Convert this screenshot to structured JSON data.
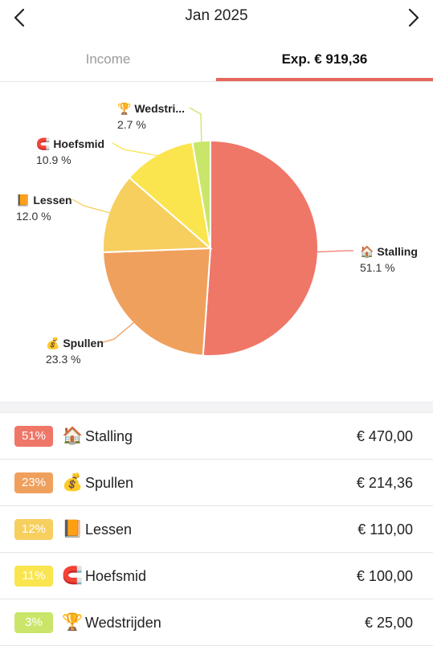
{
  "header": {
    "title": "Jan 2025"
  },
  "tabs": {
    "income_label": "Income",
    "expense_label": "Exp. € 919,36"
  },
  "colors": {
    "accent": "#e5675c"
  },
  "chart_data": {
    "type": "pie",
    "slices": [
      {
        "name": "Stalling",
        "chart_label": "Stalling",
        "icon": "🏠",
        "percent": 51.1,
        "percent_label": "51.1 %",
        "color": "#ef7768"
      },
      {
        "name": "Spullen",
        "chart_label": "Spullen",
        "icon": "💰",
        "percent": 23.3,
        "percent_label": "23.3 %",
        "color": "#f0a05d"
      },
      {
        "name": "Lessen",
        "chart_label": "Lessen",
        "icon": "📙",
        "percent": 12.0,
        "percent_label": "12.0 %",
        "color": "#f6cf5f"
      },
      {
        "name": "Hoefsmid",
        "chart_label": "Hoefsmid",
        "icon": "🧲",
        "percent": 10.9,
        "percent_label": "10.9 %",
        "color": "#fae54f"
      },
      {
        "name": "Wedstrijden",
        "chart_label": "Wedstri...",
        "icon": "🏆",
        "percent": 2.7,
        "percent_label": "2.7 %",
        "color": "#c9e66a"
      }
    ]
  },
  "list": [
    {
      "badge": "51%",
      "icon": "🏠",
      "label": "Stalling",
      "amount": "€ 470,00",
      "color": "#ef7768"
    },
    {
      "badge": "23%",
      "icon": "💰",
      "label": "Spullen",
      "amount": "€ 214,36",
      "color": "#f0a05d"
    },
    {
      "badge": "12%",
      "icon": "📙",
      "label": "Lessen",
      "amount": "€ 110,00",
      "color": "#f6cf5f"
    },
    {
      "badge": "11%",
      "icon": "🧲",
      "label": "Hoefsmid",
      "amount": "€ 100,00",
      "color": "#fae54f"
    },
    {
      "badge": "3%",
      "icon": "🏆",
      "label": "Wedstrijden",
      "amount": "€ 25,00",
      "color": "#c9e66a"
    }
  ]
}
